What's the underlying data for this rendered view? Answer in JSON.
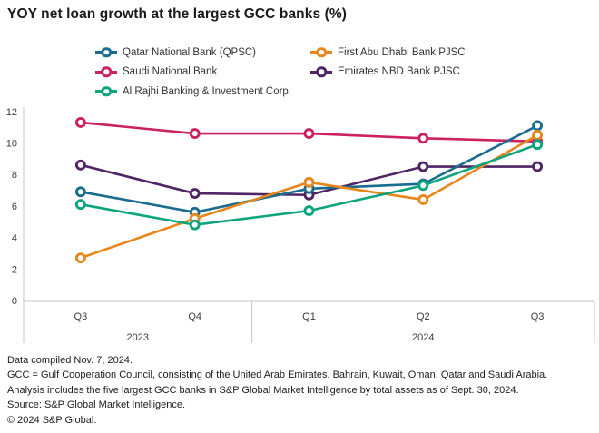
{
  "title": "YOY net loan growth at the largest GCC banks (%)",
  "legend": [
    {
      "label": "Qatar National Bank (QPSC)",
      "color": "#1A6C8E"
    },
    {
      "label": "First Abu Dhabi Bank PJSC",
      "color": "#E8861C"
    },
    {
      "label": "Saudi National Bank",
      "color": "#CC2160"
    },
    {
      "label": "Emirates NBD Bank PJSC",
      "color": "#4F2566"
    },
    {
      "label": "Al Rajhi Banking & Investment Corp.",
      "color": "#0CA47E"
    }
  ],
  "chart_data": {
    "type": "line",
    "title": "YOY net loan growth at the largest GCC banks (%)",
    "categories": [
      "Q3",
      "Q4",
      "Q1",
      "Q2",
      "Q3"
    ],
    "year_groups": [
      {
        "label": "2023",
        "span": 2
      },
      {
        "label": "2024",
        "span": 3
      }
    ],
    "series": [
      {
        "name": "Qatar National Bank (QPSC)",
        "color": "#1A6C8E",
        "values": [
          6.9,
          5.6,
          7.1,
          7.4,
          11.1
        ]
      },
      {
        "name": "First Abu Dhabi Bank PJSC",
        "color": "#E8861C",
        "values": [
          2.7,
          5.2,
          7.5,
          6.4,
          10.5
        ]
      },
      {
        "name": "Saudi National Bank",
        "color": "#CC2160",
        "values": [
          11.3,
          10.6,
          10.6,
          10.3,
          10.1
        ]
      },
      {
        "name": "Emirates NBD Bank PJSC",
        "color": "#4F2566",
        "values": [
          8.6,
          6.8,
          6.7,
          8.5,
          8.5
        ]
      },
      {
        "name": "Al Rajhi Banking & Investment Corp.",
        "color": "#0CA47E",
        "values": [
          6.1,
          4.8,
          5.7,
          7.3,
          9.9
        ]
      }
    ],
    "y_ticks": [
      0,
      2,
      4,
      6,
      8,
      10,
      12
    ],
    "ylim": [
      0,
      12
    ],
    "xlabel": "",
    "ylabel": "",
    "grid": false,
    "legend_position": "top",
    "marker_style": "open-circle"
  },
  "footer": {
    "lines": [
      "Data compiled Nov. 7, 2024.",
      "GCC = Gulf Cooperation Council, consisting of the United Arab Emirates, Bahrain, Kuwait, Oman, Qatar and Saudi Arabia.",
      "Analysis includes the five largest GCC banks in S&P Global Market Intelligence by total assets as of Sept. 30, 2024.",
      "Source: S&P Global Market Intelligence.",
      "© 2024 S&P Global."
    ]
  }
}
